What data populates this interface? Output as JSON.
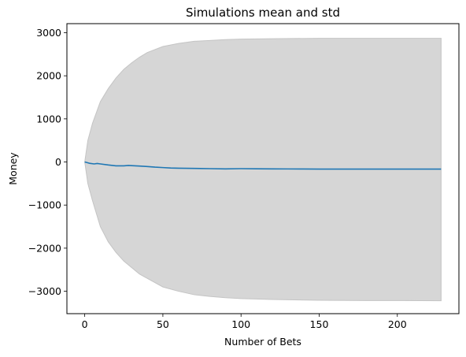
{
  "chart_data": {
    "type": "line",
    "title": "Simulations mean and std",
    "xlabel": "Number of Bets",
    "ylabel": "Money",
    "xlim": [
      -11.4,
      239.4
    ],
    "ylim": [
      -3520,
      3210
    ],
    "xticks": [
      0,
      50,
      100,
      150,
      200
    ],
    "yticks": [
      -3000,
      -2000,
      -1000,
      0,
      1000,
      2000,
      3000
    ],
    "grid": false,
    "legend": "none",
    "series": [
      {
        "role": "mean",
        "color": "#1f77b4",
        "x": [
          0,
          3,
          6,
          8,
          10,
          15,
          20,
          25,
          28,
          30,
          35,
          40,
          45,
          50,
          55,
          60,
          70,
          80,
          90,
          100,
          110,
          120,
          130,
          140,
          150,
          160,
          170,
          180,
          190,
          200,
          210,
          220,
          228
        ],
        "y": [
          0,
          -30,
          -45,
          -35,
          -45,
          -70,
          -90,
          -90,
          -80,
          -85,
          -95,
          -105,
          -120,
          -130,
          -140,
          -145,
          -150,
          -155,
          -160,
          -155,
          -158,
          -160,
          -162,
          -163,
          -165,
          -165,
          -165,
          -165,
          -165,
          -165,
          -165,
          -165,
          -165
        ]
      },
      {
        "role": "mean-plus-std",
        "color": "#d6d6d6",
        "x": [
          0,
          2,
          5,
          10,
          15,
          20,
          25,
          30,
          35,
          40,
          50,
          60,
          70,
          80,
          90,
          100,
          120,
          150,
          180,
          200,
          228
        ],
        "y": [
          0,
          500,
          900,
          1400,
          1700,
          1950,
          2150,
          2300,
          2430,
          2540,
          2680,
          2750,
          2800,
          2820,
          2840,
          2850,
          2860,
          2870,
          2870,
          2870,
          2870
        ]
      },
      {
        "role": "mean-minus-std",
        "color": "#d6d6d6",
        "x": [
          0,
          2,
          5,
          10,
          15,
          20,
          25,
          30,
          35,
          40,
          50,
          60,
          70,
          80,
          90,
          100,
          120,
          150,
          180,
          200,
          228
        ],
        "y": [
          0,
          -500,
          -900,
          -1500,
          -1850,
          -2100,
          -2300,
          -2450,
          -2600,
          -2700,
          -2900,
          -3000,
          -3080,
          -3120,
          -3150,
          -3170,
          -3190,
          -3210,
          -3215,
          -3215,
          -3220
        ]
      }
    ]
  }
}
